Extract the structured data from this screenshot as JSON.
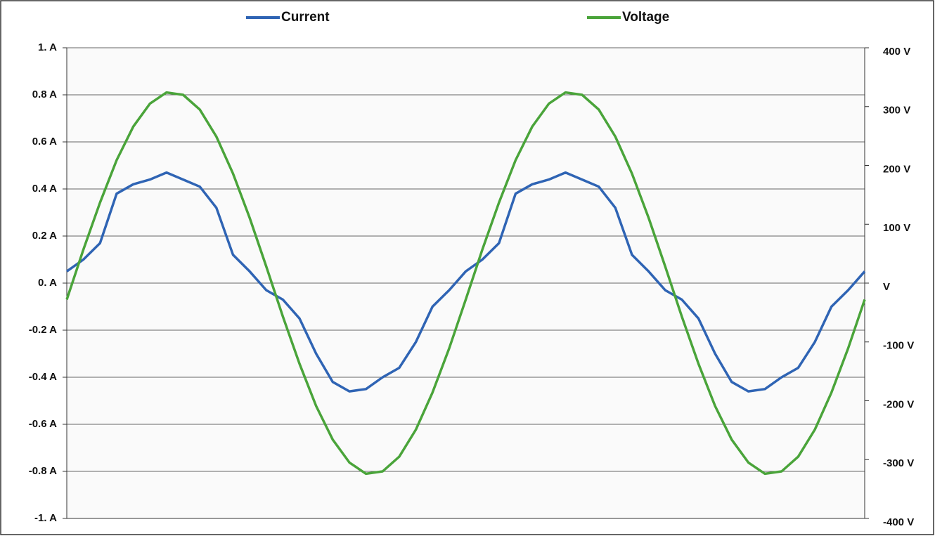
{
  "chart_data": {
    "type": "line",
    "legend": "top",
    "categories": [
      null,
      null,
      null,
      null,
      null,
      null,
      null,
      null,
      null,
      null,
      null,
      null,
      null,
      null,
      null,
      null,
      null,
      null,
      null,
      null,
      null,
      null,
      null,
      null,
      null,
      null,
      null,
      null,
      null,
      null,
      null,
      null,
      null,
      null,
      null,
      null,
      null,
      null,
      null,
      null,
      null,
      null,
      null,
      null,
      null,
      null,
      null,
      null,
      null
    ],
    "series": [
      {
        "name": "Current",
        "color": "#2f64b4",
        "values": [
          0.05,
          0.1,
          0.17,
          0.38,
          0.42,
          0.44,
          0.47,
          0.44,
          0.41,
          0.32,
          0.12,
          0.05,
          -0.03,
          -0.07,
          -0.15,
          -0.3,
          -0.42,
          -0.46,
          -0.45,
          -0.4,
          -0.36,
          -0.25,
          -0.1,
          -0.03,
          0.05,
          0.1,
          0.17,
          0.38,
          0.42,
          0.44,
          0.47,
          0.44,
          0.41,
          0.32,
          0.12,
          0.05,
          -0.03,
          -0.07,
          -0.15,
          -0.3,
          -0.42,
          -0.46,
          -0.45,
          -0.4,
          -0.36,
          -0.25,
          -0.1,
          -0.03,
          0.05
        ]
      },
      {
        "name": "Voltage",
        "color": "#4aa43a",
        "axis": "y2",
        "values": [
          -28,
          57,
          137,
          209,
          266,
          305,
          324,
          320,
          295,
          249,
          186,
          111,
          28,
          -57,
          -137,
          -209,
          -266,
          -305,
          -324,
          -320,
          -295,
          -249,
          -186,
          -111,
          -28,
          57,
          137,
          209,
          266,
          305,
          324,
          320,
          295,
          249,
          186,
          111,
          28,
          -57,
          -137,
          -209,
          -266,
          -305,
          -324,
          -320,
          -295,
          -249,
          -186,
          -111,
          -28
        ]
      }
    ],
    "ylim": [
      -1,
      1
    ],
    "yticks": [
      {
        "value": 1,
        "label": "1. A"
      },
      {
        "value": 0.8,
        "label": "0.8 A"
      },
      {
        "value": 0.6,
        "label": "0.6 A"
      },
      {
        "value": 0.4,
        "label": "0.4 A"
      },
      {
        "value": 0.2,
        "label": "0.2 A"
      },
      {
        "value": 0,
        "label": "0. A"
      },
      {
        "value": -0.2,
        "label": "-0.2 A"
      },
      {
        "value": -0.4,
        "label": "-0.4 A"
      },
      {
        "value": -0.6,
        "label": "-0.6 A"
      },
      {
        "value": -0.8,
        "label": "-0.8 A"
      },
      {
        "value": -1,
        "label": "-1. A"
      }
    ],
    "y2lim": [
      -400,
      400
    ],
    "y2ticks": [
      {
        "value": 400,
        "label": "400 V"
      },
      {
        "value": 300,
        "label": "300 V"
      },
      {
        "value": 200,
        "label": "200 V"
      },
      {
        "value": 100,
        "label": "100 V"
      },
      {
        "value": 0,
        "label": "V"
      },
      {
        "value": -100,
        "label": "-100 V"
      },
      {
        "value": -200,
        "label": "-200 V"
      },
      {
        "value": -300,
        "label": "-300 V"
      },
      {
        "value": -400,
        "label": "-400 V"
      }
    ],
    "grid": true
  }
}
